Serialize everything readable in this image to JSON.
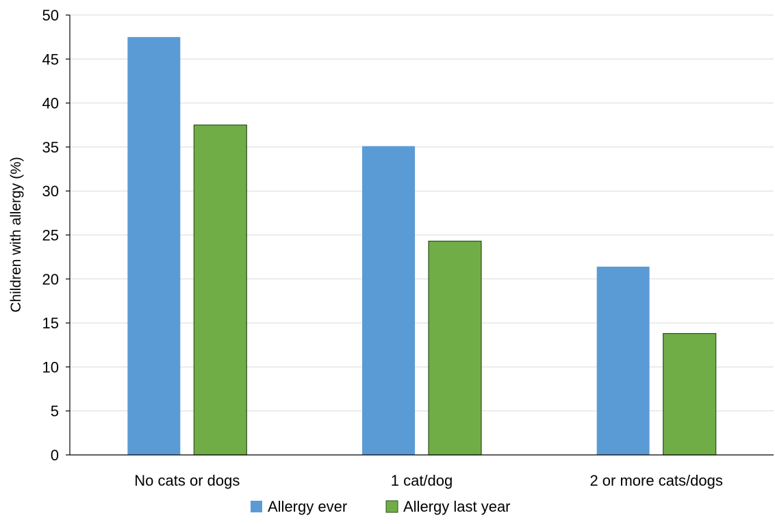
{
  "chart_data": {
    "type": "bar",
    "title": "",
    "xlabel": "",
    "ylabel": "Children with allergy (%)",
    "ylim": [
      0,
      50
    ],
    "yticks": [
      0,
      5,
      10,
      15,
      20,
      25,
      30,
      35,
      40,
      45,
      50
    ],
    "grid": true,
    "legend_position": "bottom",
    "categories": [
      "No cats or dogs",
      "1 cat/dog",
      "2 or more cats/dogs"
    ],
    "series": [
      {
        "name": "Allergy ever",
        "color": "#5b9bd5",
        "values": [
          47.5,
          35.1,
          21.4
        ]
      },
      {
        "name": "Allergy last year",
        "color": "#70ad47",
        "values": [
          37.5,
          24.3,
          13.8
        ]
      }
    ]
  }
}
